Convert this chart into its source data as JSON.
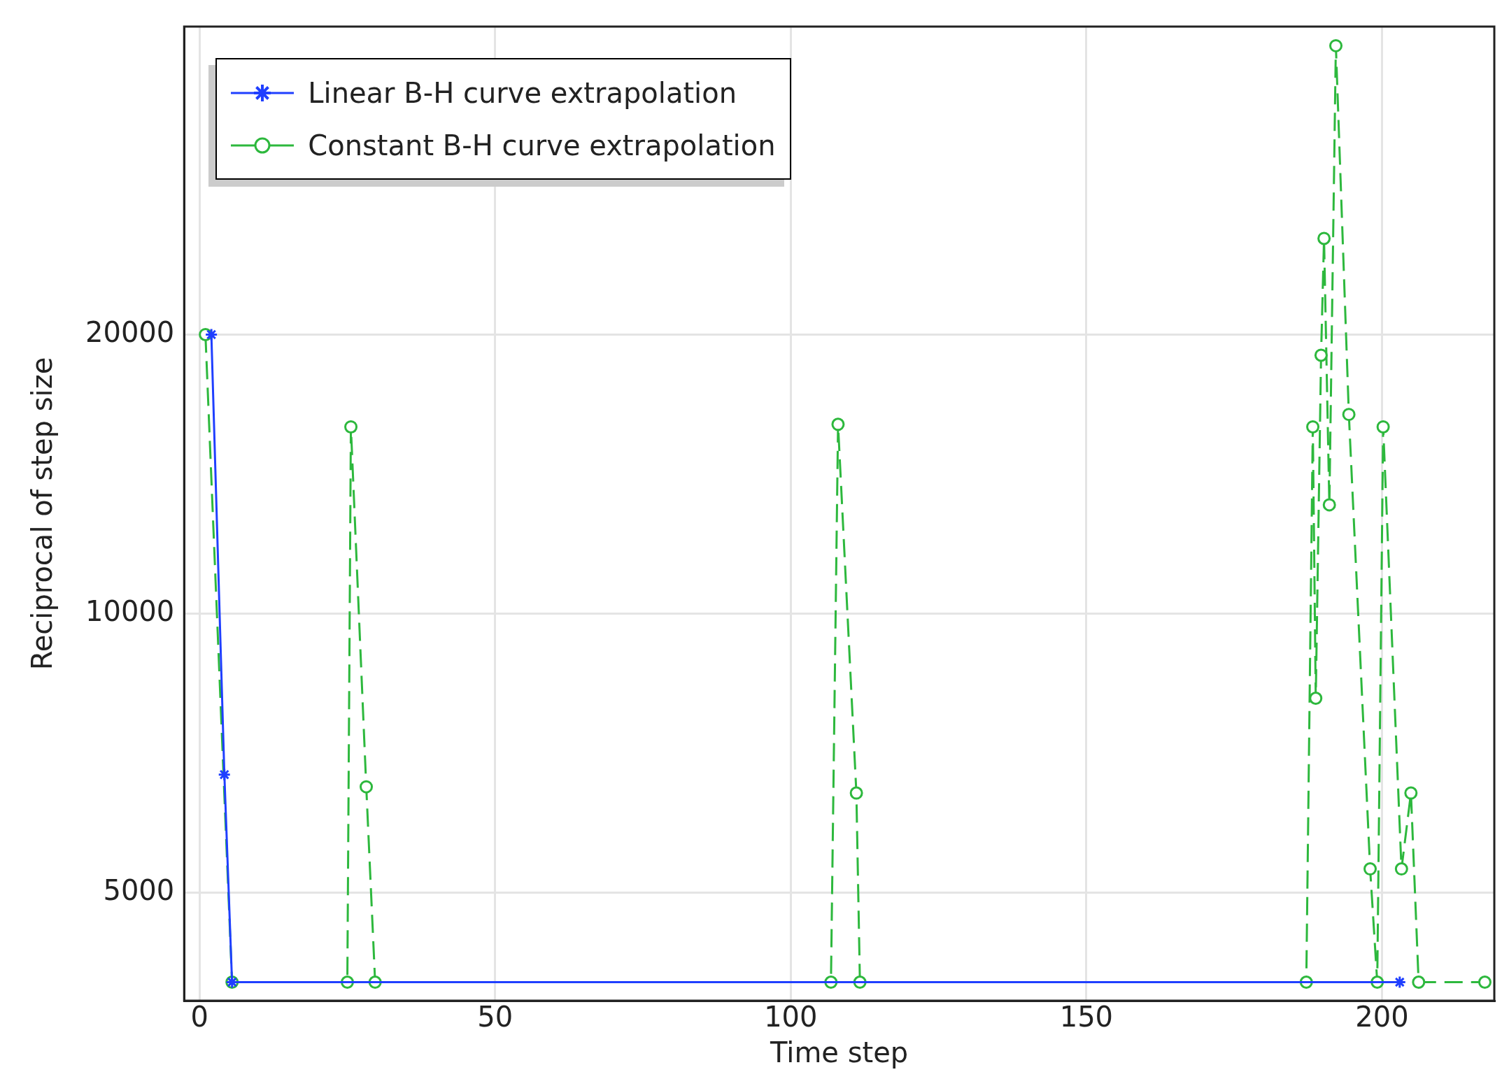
{
  "chart_data": {
    "type": "line",
    "xlabel": "Time step",
    "ylabel": "Reciprocal of step size",
    "log": "y",
    "grid": true,
    "legend": "top left",
    "xlim": [
      -2.6,
      219
    ],
    "xticks": [
      0,
      50,
      100,
      150,
      200
    ],
    "ylim": [
      3820,
      43000
    ],
    "yticks": [
      5000,
      10000,
      20000
    ],
    "series": [
      {
        "name": "Linear B-H curve extrapolation",
        "color": "#1f3fff",
        "marker": "cross",
        "line_style": "solid",
        "x": [
          2,
          4.2,
          5.5,
          203
        ],
        "values": [
          20000,
          6700,
          4000,
          4000
        ]
      },
      {
        "name": "Constant B-H curve extrapolation",
        "color": "#2db83d",
        "marker": "circle",
        "line_style": "dashed",
        "x": [
          1,
          5.5,
          25,
          25.6,
          28.2,
          29.7,
          106.8,
          108,
          111.1,
          111.7,
          187.2,
          188.3,
          188.8,
          189.7,
          190.2,
          191.1,
          192.2,
          194.4,
          198,
          199.2,
          200.2,
          203.3,
          204.9,
          206.2,
          217.4
        ],
        "values": [
          20000,
          4000,
          4000,
          15900,
          6500,
          4000,
          4000,
          16000,
          6400,
          4000,
          4000,
          15900,
          8100,
          19000,
          25400,
          13100,
          41000,
          16400,
          5300,
          4000,
          15900,
          5300,
          6400,
          4000,
          4000
        ]
      }
    ]
  }
}
